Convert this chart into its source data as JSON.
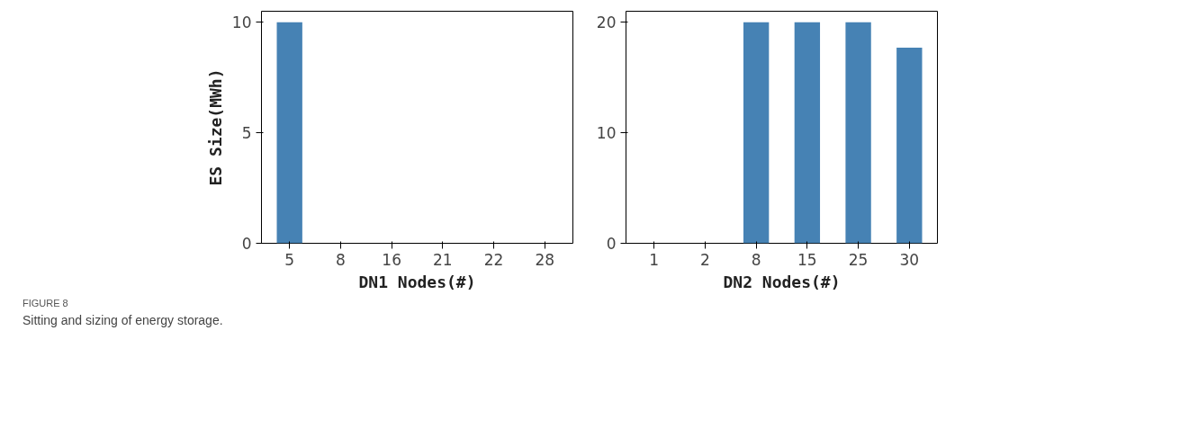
{
  "chart_data": [
    {
      "type": "bar",
      "categories": [
        "5",
        "8",
        "16",
        "21",
        "22",
        "28"
      ],
      "xlabel": "DN1 Nodes(#)",
      "ylabel": "ES Size(MWh)",
      "ylim": [
        0,
        10.5
      ],
      "yticks": [
        0,
        5,
        10
      ],
      "series": [
        {
          "color": "#4682b4",
          "values": [
            10,
            0,
            0,
            0,
            0,
            0
          ]
        }
      ]
    },
    {
      "type": "bar",
      "categories": [
        "1",
        "2",
        "8",
        "15",
        "25",
        "30"
      ],
      "xlabel": "DN2 Nodes(#)",
      "ylim": [
        0,
        21
      ],
      "yticks": [
        0,
        10,
        20
      ],
      "series": [
        {
          "color": "#4682b4",
          "values": [
            0,
            0,
            20,
            20,
            20,
            17.7
          ]
        }
      ],
      "annotations": [
        "FIGURE 8",
        "Sitting and sizing of energy storage."
      ]
    }
  ]
}
